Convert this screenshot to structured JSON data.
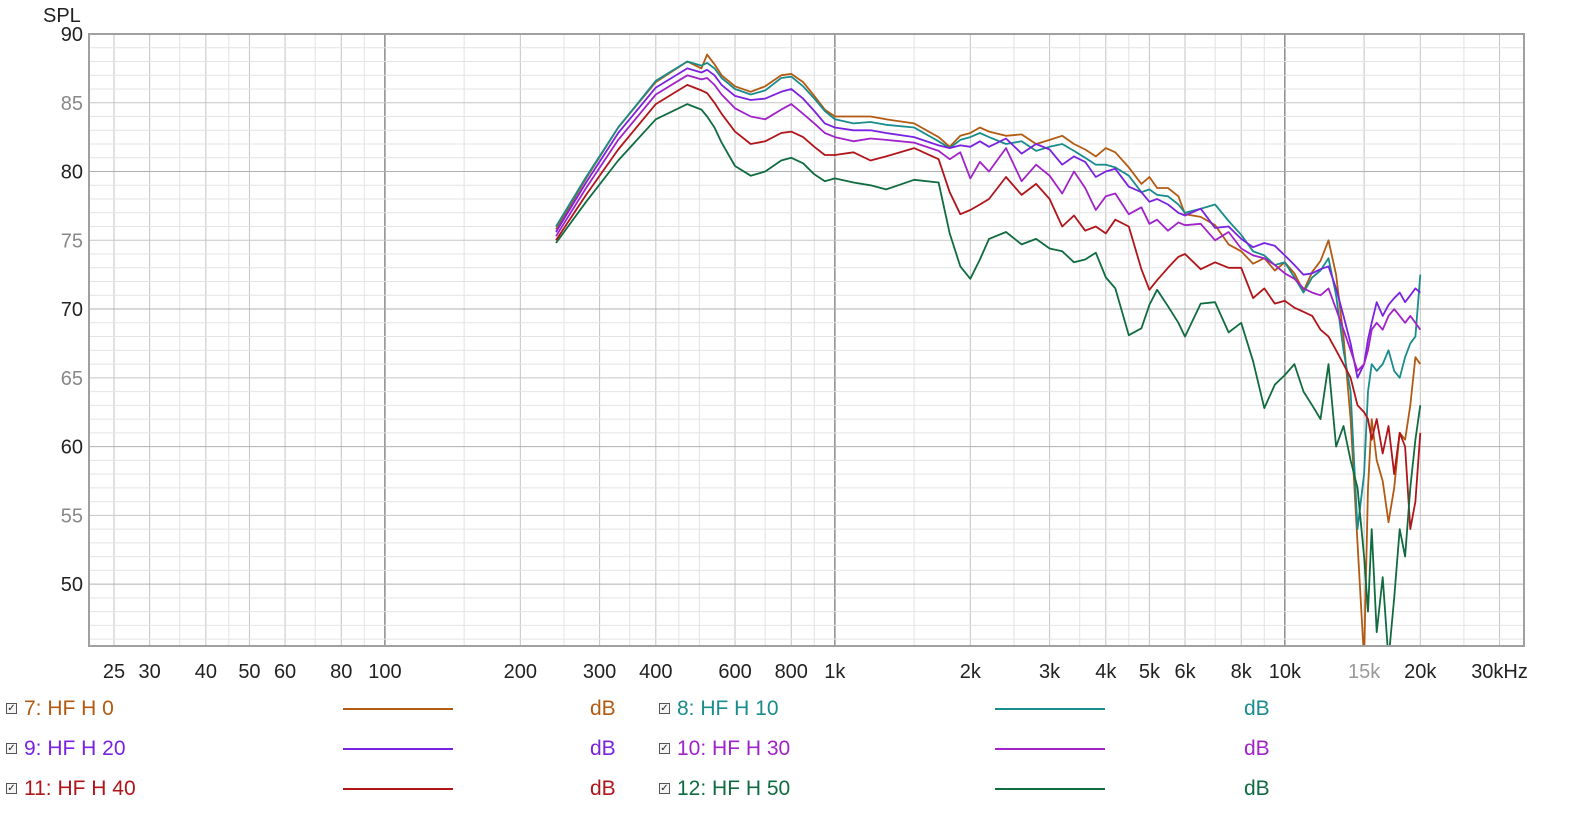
{
  "chart_data": {
    "type": "line",
    "ylabel": "SPL",
    "xlabel": "",
    "x_scale": "log",
    "xlim": [
      22,
      34000
    ],
    "ylim": [
      45.5,
      90
    ],
    "y_ticks": [
      {
        "value": 90,
        "label": "90",
        "color": "#222222"
      },
      {
        "value": 85,
        "label": "85",
        "color": "#888888"
      },
      {
        "value": 80,
        "label": "80",
        "color": "#222222"
      },
      {
        "value": 75,
        "label": "75",
        "color": "#888888"
      },
      {
        "value": 70,
        "label": "70",
        "color": "#222222"
      },
      {
        "value": 65,
        "label": "65",
        "color": "#888888"
      },
      {
        "value": 60,
        "label": "60",
        "color": "#222222"
      },
      {
        "value": 55,
        "label": "55",
        "color": "#888888"
      },
      {
        "value": 50,
        "label": "50",
        "color": "#222222"
      }
    ],
    "x_ticks": [
      {
        "value": 25,
        "label": "25",
        "color": "#222222"
      },
      {
        "value": 30,
        "label": "30",
        "color": "#222222"
      },
      {
        "value": 40,
        "label": "40",
        "color": "#222222"
      },
      {
        "value": 50,
        "label": "50",
        "color": "#222222"
      },
      {
        "value": 60,
        "label": "60",
        "color": "#222222"
      },
      {
        "value": 80,
        "label": "80",
        "color": "#222222"
      },
      {
        "value": 100,
        "label": "100",
        "color": "#222222"
      },
      {
        "value": 200,
        "label": "200",
        "color": "#222222"
      },
      {
        "value": 300,
        "label": "300",
        "color": "#222222"
      },
      {
        "value": 400,
        "label": "400",
        "color": "#222222"
      },
      {
        "value": 600,
        "label": "600",
        "color": "#222222"
      },
      {
        "value": 800,
        "label": "800",
        "color": "#222222"
      },
      {
        "value": 1000,
        "label": "1k",
        "color": "#222222"
      },
      {
        "value": 2000,
        "label": "2k",
        "color": "#222222"
      },
      {
        "value": 3000,
        "label": "3k",
        "color": "#222222"
      },
      {
        "value": 4000,
        "label": "4k",
        "color": "#222222"
      },
      {
        "value": 5000,
        "label": "5k",
        "color": "#222222"
      },
      {
        "value": 6000,
        "label": "6k",
        "color": "#222222"
      },
      {
        "value": 8000,
        "label": "8k",
        "color": "#222222"
      },
      {
        "value": 10000,
        "label": "10k",
        "color": "#222222"
      },
      {
        "value": 15000,
        "label": "15k",
        "color": "#999999"
      },
      {
        "value": 20000,
        "label": "20k",
        "color": "#222222"
      },
      {
        "value": 30000,
        "label": "30kHz",
        "color": "#222222"
      }
    ],
    "grid": true,
    "legend_position": "bottom",
    "series": [
      {
        "name": "7: HF H 0",
        "unit": "dB",
        "color": "#b35a12",
        "x": [
          240,
          280,
          330,
          400,
          470,
          505,
          520,
          540,
          560,
          600,
          650,
          700,
          760,
          800,
          850,
          900,
          950,
          1000,
          1100,
          1200,
          1300,
          1500,
          1700,
          1800,
          1900,
          2000,
          2100,
          2200,
          2400,
          2600,
          2800,
          3000,
          3200,
          3400,
          3600,
          3800,
          4000,
          4200,
          4500,
          4800,
          5000,
          5200,
          5500,
          5800,
          6000,
          6500,
          7000,
          7500,
          8000,
          8500,
          9000,
          9500,
          10000,
          10500,
          11000,
          11500,
          12000,
          12500,
          13000,
          13500,
          14000,
          14500,
          15000,
          15300,
          15600,
          16000,
          16500,
          17000,
          17500,
          18000,
          18500,
          19000,
          19500,
          20000
        ],
        "y": [
          75.8,
          79.5,
          83.2,
          86.5,
          88.0,
          87.5,
          88.5,
          87.8,
          87.0,
          86.2,
          85.8,
          86.2,
          87.0,
          87.1,
          86.5,
          85.5,
          84.5,
          84.0,
          84.0,
          84.0,
          83.8,
          83.5,
          82.5,
          81.8,
          82.6,
          82.8,
          83.2,
          82.9,
          82.6,
          82.7,
          82.0,
          82.3,
          82.6,
          82.0,
          81.6,
          81.1,
          81.7,
          81.4,
          80.3,
          79.1,
          79.6,
          78.8,
          78.8,
          78.2,
          76.9,
          76.7,
          76.1,
          74.7,
          74.2,
          73.3,
          73.7,
          72.8,
          73.4,
          72.6,
          71.3,
          72.7,
          73.5,
          75.0,
          72.5,
          68.0,
          62.0,
          53.0,
          44.5,
          57.0,
          62.0,
          59.0,
          57.5,
          54.5,
          57.0,
          61.0,
          60.5,
          63.0,
          66.5,
          66.0
        ]
      },
      {
        "name": "8: HF H 10",
        "unit": "dB",
        "color": "#1a8c8c",
        "x": [
          240,
          280,
          330,
          400,
          470,
          505,
          520,
          540,
          560,
          600,
          650,
          700,
          760,
          800,
          850,
          900,
          950,
          1000,
          1100,
          1200,
          1300,
          1500,
          1700,
          1800,
          1900,
          2000,
          2100,
          2200,
          2400,
          2600,
          2800,
          3000,
          3200,
          3400,
          3600,
          3800,
          4000,
          4200,
          4500,
          4800,
          5000,
          5200,
          5500,
          5800,
          6000,
          6500,
          7000,
          7500,
          8000,
          8500,
          9000,
          9500,
          10000,
          10500,
          11000,
          11500,
          12000,
          12500,
          13000,
          13500,
          14000,
          14500,
          15000,
          15300,
          15600,
          16000,
          16500,
          17000,
          17500,
          18000,
          18500,
          19000,
          19500,
          20000
        ],
        "y": [
          76.0,
          79.6,
          83.2,
          86.6,
          88.0,
          87.7,
          87.9,
          87.5,
          86.8,
          86.0,
          85.6,
          85.9,
          86.8,
          86.9,
          86.2,
          85.3,
          84.4,
          83.8,
          83.5,
          83.6,
          83.4,
          83.2,
          82.2,
          81.7,
          82.3,
          82.5,
          82.8,
          82.5,
          82.0,
          82.2,
          81.5,
          81.8,
          82.0,
          81.5,
          81.0,
          80.5,
          80.5,
          80.3,
          79.7,
          78.5,
          78.7,
          78.3,
          78.2,
          77.6,
          77.0,
          77.3,
          77.6,
          76.4,
          75.4,
          74.2,
          73.9,
          73.2,
          73.4,
          72.3,
          71.2,
          72.3,
          72.8,
          73.7,
          71.0,
          67.0,
          64.0,
          54.0,
          58.0,
          64.0,
          66.0,
          65.5,
          66.0,
          67.0,
          65.5,
          65.0,
          66.5,
          67.5,
          68.0,
          72.5
        ]
      },
      {
        "name": "9: HF H 20",
        "unit": "dB",
        "color": "#7a22e0",
        "x": [
          240,
          280,
          330,
          400,
          470,
          505,
          520,
          540,
          560,
          600,
          650,
          700,
          760,
          800,
          850,
          900,
          950,
          1000,
          1100,
          1200,
          1300,
          1500,
          1700,
          1800,
          1900,
          2000,
          2100,
          2200,
          2400,
          2600,
          2800,
          3000,
          3200,
          3400,
          3600,
          3800,
          4000,
          4200,
          4500,
          4800,
          5000,
          5200,
          5500,
          5800,
          6000,
          6500,
          7000,
          7500,
          8000,
          8500,
          9000,
          9500,
          10000,
          10500,
          11000,
          11500,
          12000,
          12500,
          13000,
          13500,
          14000,
          14500,
          15000,
          15300,
          15600,
          16000,
          16500,
          17000,
          17500,
          18000,
          18500,
          19000,
          19500,
          20000
        ],
        "y": [
          75.6,
          79.2,
          82.8,
          86.1,
          87.5,
          87.2,
          87.4,
          87.0,
          86.3,
          85.5,
          85.2,
          85.3,
          85.8,
          86.0,
          85.3,
          84.4,
          83.5,
          83.2,
          83.0,
          83.0,
          82.8,
          82.5,
          81.9,
          81.7,
          81.9,
          81.8,
          82.2,
          81.8,
          82.4,
          81.3,
          82.0,
          81.6,
          80.5,
          81.1,
          80.7,
          79.6,
          80.0,
          80.2,
          78.9,
          78.5,
          77.8,
          78.0,
          77.6,
          77.0,
          76.8,
          77.3,
          75.9,
          76.0,
          75.1,
          74.5,
          74.8,
          74.6,
          73.9,
          73.2,
          72.5,
          72.6,
          72.9,
          73.1,
          71.5,
          69.5,
          67.5,
          65.0,
          66.0,
          67.8,
          69.0,
          70.5,
          69.5,
          70.3,
          70.8,
          71.2,
          70.5,
          71.0,
          71.5,
          71.2
        ]
      },
      {
        "name": "10: HF H 30",
        "unit": "dB",
        "color": "#a022c8",
        "x": [
          240,
          280,
          330,
          400,
          470,
          505,
          520,
          540,
          560,
          600,
          650,
          700,
          760,
          800,
          850,
          900,
          950,
          1000,
          1100,
          1200,
          1300,
          1500,
          1700,
          1800,
          1900,
          2000,
          2100,
          2200,
          2400,
          2600,
          2800,
          3000,
          3200,
          3400,
          3600,
          3800,
          4000,
          4200,
          4500,
          4800,
          5000,
          5200,
          5500,
          5800,
          6000,
          6500,
          7000,
          7500,
          8000,
          8500,
          9000,
          9500,
          10000,
          10500,
          11000,
          11500,
          12000,
          12500,
          13000,
          13500,
          14000,
          14500,
          15000,
          15300,
          15600,
          16000,
          16500,
          17000,
          17500,
          18000,
          18500,
          19000,
          19500,
          20000
        ],
        "y": [
          75.3,
          78.8,
          82.3,
          85.6,
          87.0,
          86.7,
          86.8,
          86.3,
          85.6,
          84.6,
          84.0,
          83.8,
          84.5,
          84.9,
          84.2,
          83.5,
          82.8,
          82.5,
          82.2,
          82.4,
          82.3,
          82.1,
          81.5,
          80.9,
          81.4,
          79.5,
          80.7,
          80.0,
          81.7,
          79.3,
          80.5,
          79.7,
          78.4,
          80.0,
          78.8,
          77.2,
          78.2,
          78.4,
          76.9,
          77.4,
          76.2,
          76.5,
          75.7,
          76.3,
          76.1,
          76.2,
          75.0,
          75.6,
          74.4,
          73.9,
          73.7,
          73.2,
          72.6,
          72.2,
          71.5,
          71.2,
          71.0,
          71.5,
          70.0,
          68.5,
          67.0,
          65.5,
          66.0,
          67.0,
          68.5,
          69.0,
          68.5,
          69.5,
          70.0,
          69.5,
          69.0,
          69.5,
          69.0,
          68.5
        ]
      },
      {
        "name": "11: HF H 40",
        "unit": "dB",
        "color": "#b0151a",
        "x": [
          240,
          280,
          330,
          400,
          470,
          505,
          520,
          540,
          560,
          600,
          650,
          700,
          760,
          800,
          850,
          900,
          950,
          1000,
          1100,
          1200,
          1300,
          1500,
          1700,
          1800,
          1900,
          2000,
          2100,
          2200,
          2400,
          2600,
          2800,
          3000,
          3200,
          3400,
          3600,
          3800,
          4000,
          4200,
          4500,
          4800,
          5000,
          5200,
          5500,
          5800,
          6000,
          6500,
          7000,
          7500,
          8000,
          8500,
          9000,
          9500,
          10000,
          10500,
          11000,
          11500,
          12000,
          12500,
          13000,
          13500,
          14000,
          14500,
          15000,
          15300,
          15600,
          16000,
          16500,
          17000,
          17500,
          18000,
          18500,
          19000,
          19500,
          20000
        ],
        "y": [
          75.0,
          78.3,
          81.6,
          84.9,
          86.3,
          85.9,
          85.7,
          85.0,
          84.2,
          82.9,
          82.0,
          82.2,
          82.8,
          82.9,
          82.5,
          81.8,
          81.2,
          81.2,
          81.4,
          80.8,
          81.1,
          81.7,
          80.9,
          78.5,
          76.9,
          77.2,
          77.6,
          78.0,
          79.6,
          78.3,
          79.1,
          78.0,
          76.0,
          76.8,
          75.7,
          76.0,
          75.5,
          76.5,
          76.0,
          72.9,
          71.4,
          72.1,
          73.0,
          73.8,
          74.0,
          72.9,
          73.4,
          73.0,
          73.0,
          70.8,
          71.5,
          70.4,
          70.6,
          70.1,
          69.8,
          69.5,
          68.5,
          68.0,
          67.0,
          66.0,
          65.0,
          63.0,
          62.5,
          62.0,
          60.5,
          62.0,
          59.5,
          61.5,
          58.0,
          61.0,
          60.0,
          54.0,
          56.0,
          61.0
        ]
      },
      {
        "name": "12: HF H 50",
        "unit": "dB",
        "color": "#106c40",
        "x": [
          240,
          280,
          330,
          400,
          470,
          505,
          520,
          540,
          560,
          600,
          650,
          700,
          760,
          800,
          850,
          900,
          950,
          1000,
          1100,
          1200,
          1300,
          1500,
          1700,
          1800,
          1900,
          2000,
          2100,
          2200,
          2400,
          2600,
          2800,
          3000,
          3200,
          3400,
          3600,
          3800,
          4000,
          4200,
          4500,
          4800,
          5000,
          5200,
          5500,
          5800,
          6000,
          6500,
          7000,
          7500,
          8000,
          8500,
          9000,
          9500,
          10000,
          10500,
          11000,
          11500,
          12000,
          12500,
          13000,
          13500,
          14000,
          14500,
          15000,
          15300,
          15600,
          16000,
          16500,
          17000,
          17500,
          18000,
          18500,
          19000,
          19500,
          20000
        ],
        "y": [
          74.8,
          77.8,
          80.8,
          83.8,
          84.9,
          84.5,
          84.0,
          83.2,
          82.1,
          80.4,
          79.7,
          80.0,
          80.8,
          81.0,
          80.6,
          79.8,
          79.3,
          79.5,
          79.2,
          79.0,
          78.7,
          79.4,
          79.2,
          75.5,
          73.1,
          72.2,
          73.6,
          75.1,
          75.6,
          74.7,
          75.1,
          74.4,
          74.2,
          73.4,
          73.6,
          74.1,
          72.3,
          71.5,
          68.1,
          68.6,
          70.3,
          71.4,
          70.2,
          69.0,
          68.0,
          70.4,
          70.5,
          68.3,
          69.0,
          66.2,
          62.8,
          64.5,
          65.2,
          66.0,
          64.0,
          63.0,
          62.0,
          66.0,
          60.0,
          61.5,
          59.0,
          57.0,
          52.0,
          48.0,
          54.0,
          46.5,
          50.5,
          44.5,
          49.0,
          54.0,
          52.0,
          57.0,
          60.5,
          63.0
        ]
      }
    ]
  }
}
